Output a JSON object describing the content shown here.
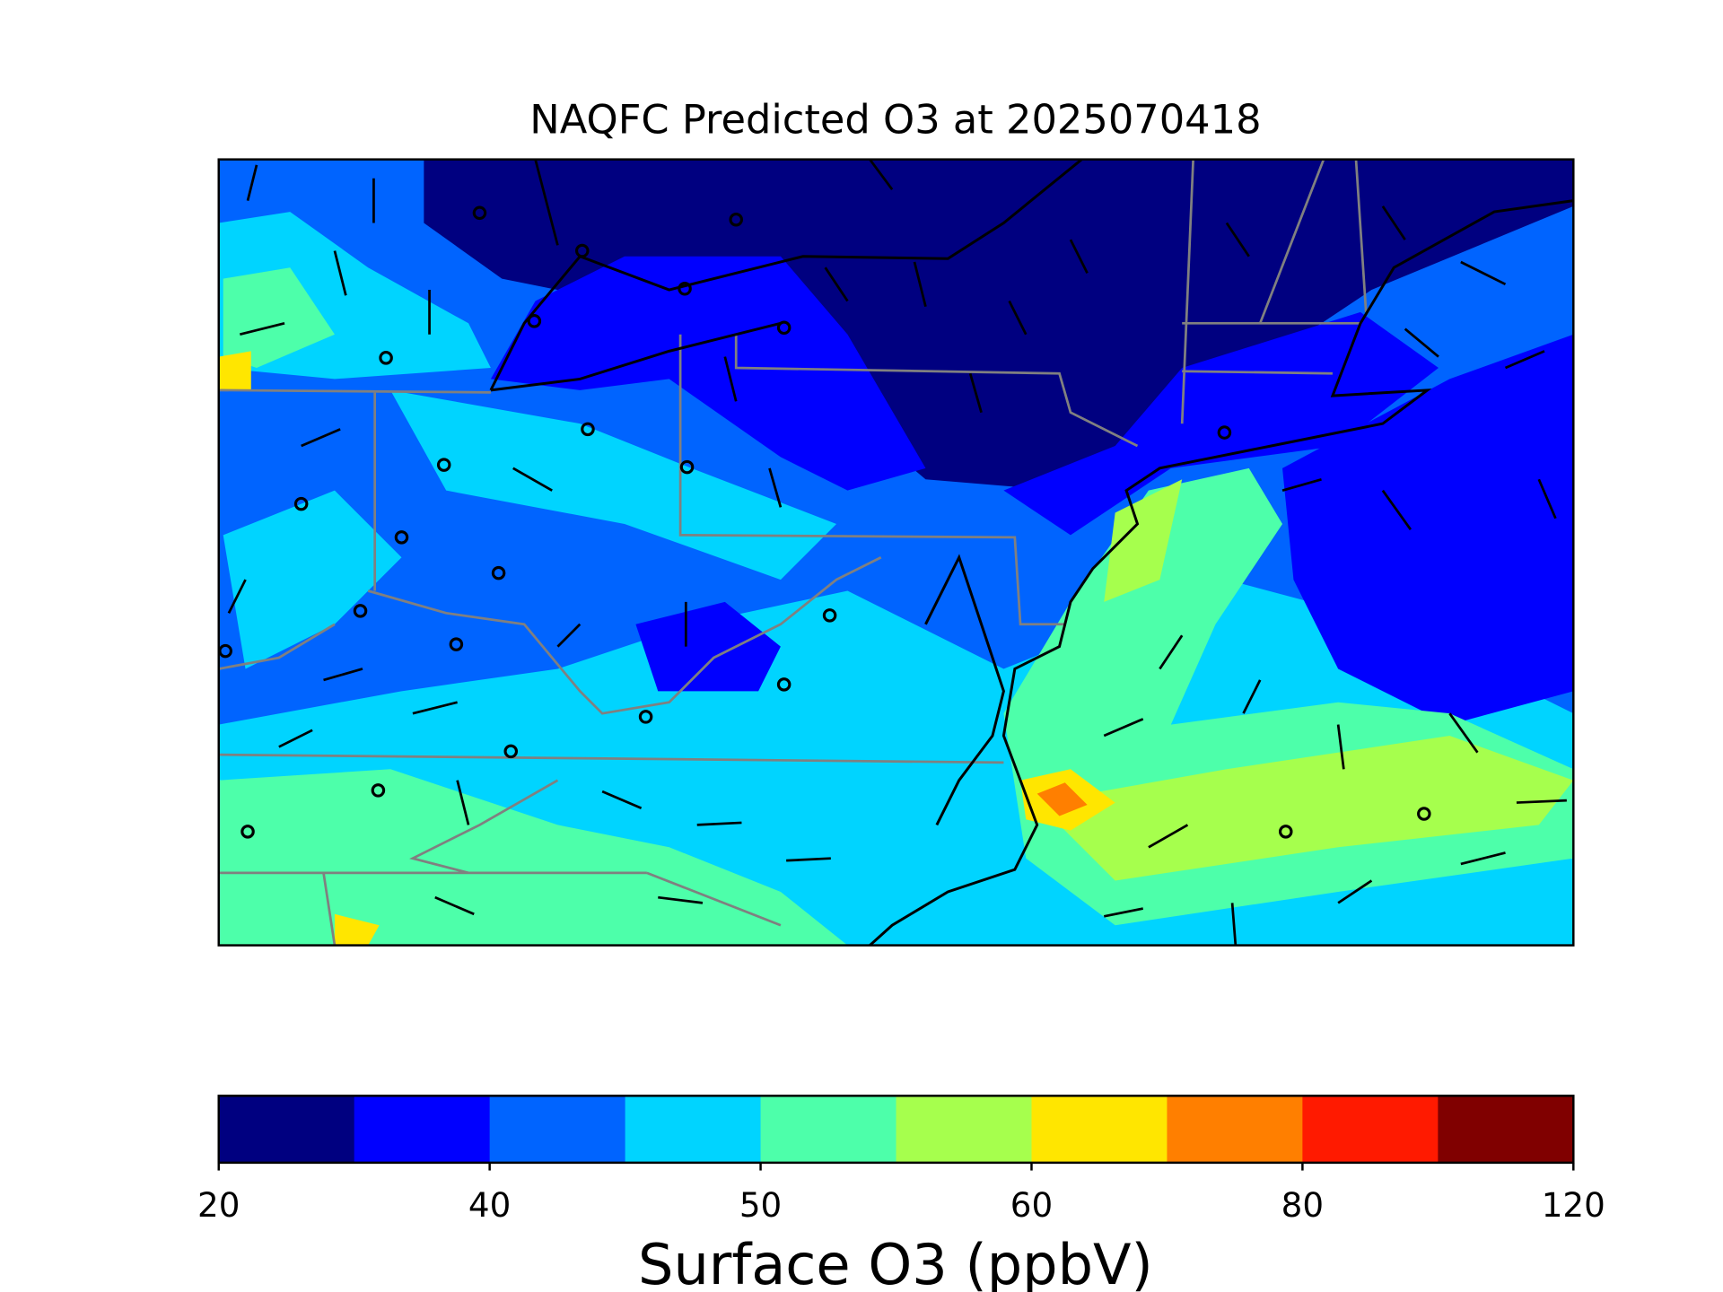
{
  "chart_data": {
    "type": "map",
    "title": "NAQFC Predicted O3 at 2025070418",
    "colorbar": {
      "label": "Surface O3 (ppbV)",
      "colors": [
        "#000080",
        "#0000ff",
        "#0064ff",
        "#00d4ff",
        "#4dffaa",
        "#a6ff4d",
        "#ffe600",
        "#ff7f00",
        "#ff1a00",
        "#800000"
      ],
      "ticks": [
        20,
        40,
        50,
        60,
        80,
        120
      ]
    }
  }
}
